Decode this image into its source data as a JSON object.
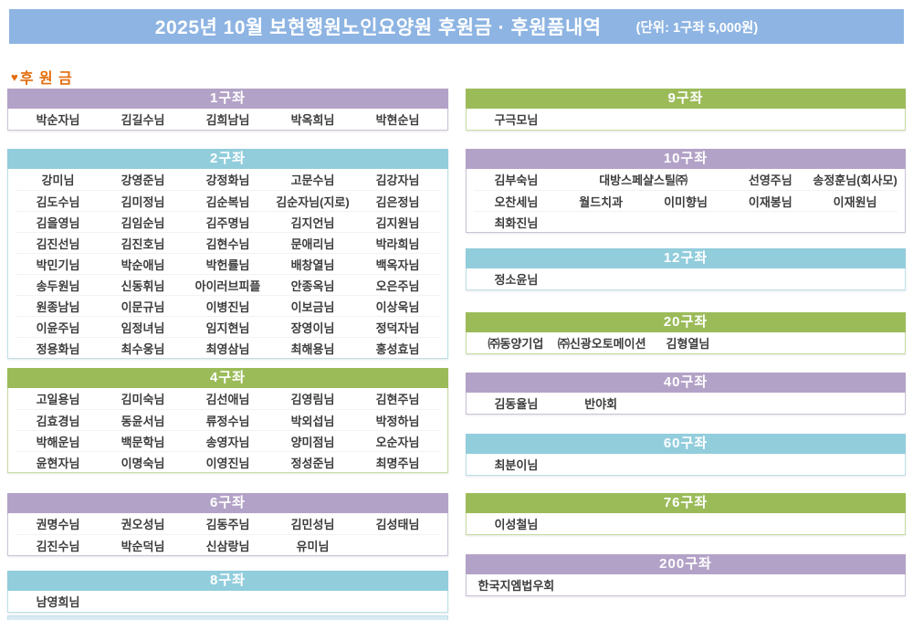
{
  "header": {
    "title": "2025년 10월 보현행원노인요양원 후원금 · 후원품내역",
    "unit_note": "(단위: 1구좌 5,000원)"
  },
  "donation_label": {
    "heart": "♥",
    "text": "후 원 금"
  },
  "colors": {
    "title_bar": "#8DB4E2",
    "purple": "#B3A2C7",
    "purple_light": "#CDC2DB",
    "green": "#9BBB59",
    "green_light": "#C8DBA2",
    "blue": "#92CDDC",
    "blue_light": "#BCE0EA",
    "label_orange": "#E36C0A",
    "name_text": "#3D3D3D"
  },
  "columns": {
    "left": [
      {
        "title": "1구좌",
        "color": "purple",
        "rows": [
          [
            "박순자님",
            "김길수님",
            "김희남님",
            "박옥희님",
            "박현순님"
          ]
        ]
      },
      {
        "title": "2구좌",
        "color": "blue",
        "rows": [
          [
            "강미님",
            "강영준님",
            "강정화님",
            "고문수님",
            "김강자님"
          ],
          [
            "김도수님",
            "김미정님",
            "김순복님",
            "김순자님(지로)",
            "김은정님"
          ],
          [
            "김을영님",
            "김임순님",
            "김주명님",
            "김지언님",
            "김지원님"
          ],
          [
            "김진선님",
            "김진호님",
            "김현수님",
            "문애리님",
            "박라희님"
          ],
          [
            "박민기님",
            "박순애님",
            "박헌률님",
            "배창열님",
            "백옥자님"
          ],
          [
            "송두원님",
            "신동휘님",
            "아이러브피플",
            "안종옥님",
            "오은주님"
          ],
          [
            "원종남님",
            "이문규님",
            "이병진님",
            "이보금님",
            "이상욱님"
          ],
          [
            "이윤주님",
            "임정녀님",
            "임지현님",
            "장영이님",
            "정덕자님"
          ],
          [
            "정용화님",
            "최수웅님",
            "최영삼님",
            "최해용님",
            "홍성효님"
          ]
        ]
      },
      {
        "title": "4구좌",
        "color": "green",
        "rows": [
          [
            "고일용님",
            "김미숙님",
            "김선애님",
            "김영림님",
            "김현주님"
          ],
          [
            "김효경님",
            "동윤서님",
            "류정수님",
            "박외섭님",
            "박정하님"
          ],
          [
            "박해운님",
            "백문학님",
            "송영자님",
            "양미점님",
            "오순자님"
          ],
          [
            "윤현자님",
            "이명숙님",
            "이영진님",
            "정성준님",
            "최명주님"
          ]
        ]
      },
      {
        "title": "6구좌",
        "color": "purple",
        "rows": [
          [
            "권명수님",
            "권오성님",
            "김동주님",
            "김민성님",
            "김성태님"
          ],
          [
            "김진수님",
            "박순덕님",
            "신삼랑님",
            "유미님"
          ]
        ]
      },
      {
        "title": "8구좌",
        "color": "blue",
        "rows": [
          [
            "남영희님"
          ]
        ]
      }
    ],
    "right": [
      {
        "title": "9구좌",
        "color": "green",
        "rows": [
          [
            "구극모님"
          ]
        ]
      },
      {
        "title": "10구좌",
        "color": "purple",
        "rows": [
          [
            "김부숙님",
            {
              "t": "대방스페샬스틸㈜",
              "span": 2
            },
            "선영주님",
            "송정훈님(회사모)"
          ],
          [
            "오찬세님",
            "월드치과",
            "이미향님",
            "이재봉님",
            "이재원님"
          ],
          [
            "최화진님"
          ]
        ]
      },
      {
        "title": "12구좌",
        "color": "blue",
        "rows": [
          [
            "정소윤님"
          ]
        ]
      },
      {
        "title": "20구좌",
        "color": "green",
        "rows": [
          [
            "㈜동양기업",
            "㈜신광오토메이션",
            "김형열님"
          ]
        ]
      },
      {
        "title": "40구좌",
        "color": "purple",
        "rows": [
          [
            "김동율님",
            "반야회"
          ]
        ]
      },
      {
        "title": "60구좌",
        "color": "blue",
        "rows": [
          [
            "최분이님"
          ]
        ]
      },
      {
        "title": "76구좌",
        "color": "green",
        "rows": [
          [
            "이성철님"
          ]
        ]
      },
      {
        "title": "200구좌",
        "color": "purple",
        "rows": [
          [
            "한국지엠법우회"
          ]
        ]
      }
    ]
  }
}
